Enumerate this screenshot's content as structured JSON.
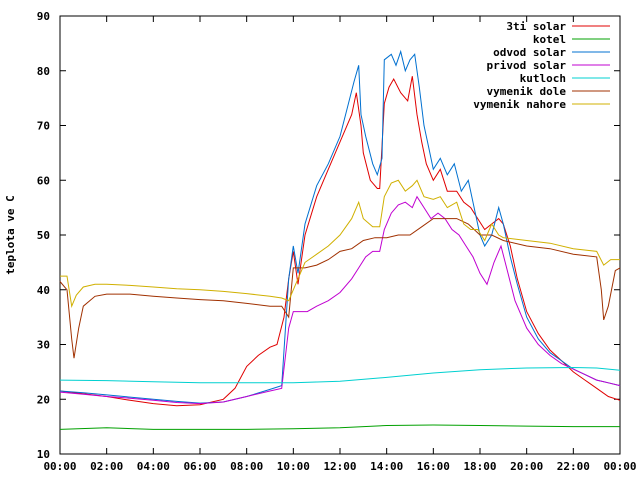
{
  "chart_data": {
    "type": "line",
    "title": "",
    "xlabel": "",
    "ylabel": "teplota ve C",
    "ylim": [
      10,
      90
    ],
    "yticks": [
      "10",
      "20",
      "30",
      "40",
      "50",
      "60",
      "70",
      "80",
      "90"
    ],
    "xlim": [
      0,
      24
    ],
    "xticks": [
      "00:00",
      "02:00",
      "04:00",
      "06:00",
      "08:00",
      "10:00",
      "12:00",
      "14:00",
      "16:00",
      "18:00",
      "20:00",
      "22:00",
      "00:00"
    ],
    "grid": false,
    "legend_position": "top-right",
    "series": [
      {
        "name": "3ti solar",
        "color": "#e00000",
        "points": [
          [
            0,
            21.5
          ],
          [
            1,
            21
          ],
          [
            2,
            20.5
          ],
          [
            3,
            19.8
          ],
          [
            4,
            19.2
          ],
          [
            5,
            18.8
          ],
          [
            6,
            19
          ],
          [
            7,
            20
          ],
          [
            7.5,
            22
          ],
          [
            8,
            26
          ],
          [
            8.5,
            28
          ],
          [
            9,
            29.5
          ],
          [
            9.3,
            30
          ],
          [
            9.6,
            35
          ],
          [
            9.8,
            42
          ],
          [
            10,
            47
          ],
          [
            10.2,
            41
          ],
          [
            10.5,
            50
          ],
          [
            11,
            57
          ],
          [
            11.5,
            62
          ],
          [
            12,
            67
          ],
          [
            12.5,
            72
          ],
          [
            12.7,
            76
          ],
          [
            12.9,
            70
          ],
          [
            13,
            65
          ],
          [
            13.3,
            60
          ],
          [
            13.6,
            58.5
          ],
          [
            13.7,
            58.5
          ],
          [
            13.9,
            74
          ],
          [
            14.1,
            77
          ],
          [
            14.3,
            78.5
          ],
          [
            14.6,
            76
          ],
          [
            14.9,
            74.5
          ],
          [
            15.1,
            79
          ],
          [
            15.3,
            72
          ],
          [
            15.5,
            67
          ],
          [
            15.7,
            63
          ],
          [
            16,
            60
          ],
          [
            16.3,
            62
          ],
          [
            16.6,
            58
          ],
          [
            17,
            58
          ],
          [
            17.3,
            56
          ],
          [
            17.6,
            55
          ],
          [
            17.9,
            53
          ],
          [
            18.2,
            51
          ],
          [
            18.5,
            52
          ],
          [
            18.8,
            53
          ],
          [
            19,
            52
          ],
          [
            19.3,
            48
          ],
          [
            19.6,
            42
          ],
          [
            20,
            36
          ],
          [
            20.5,
            32
          ],
          [
            21,
            29
          ],
          [
            21.5,
            27
          ],
          [
            22,
            25
          ],
          [
            22.5,
            23.5
          ],
          [
            23,
            22
          ],
          [
            23.5,
            20.5
          ],
          [
            24,
            19.8
          ]
        ]
      },
      {
        "name": "kotel",
        "color": "#00a000",
        "points": [
          [
            0,
            14.5
          ],
          [
            2,
            14.8
          ],
          [
            4,
            14.5
          ],
          [
            6,
            14.5
          ],
          [
            8,
            14.5
          ],
          [
            10,
            14.6
          ],
          [
            12,
            14.8
          ],
          [
            14,
            15.2
          ],
          [
            16,
            15.3
          ],
          [
            18,
            15.2
          ],
          [
            20,
            15.1
          ],
          [
            22,
            15
          ],
          [
            24,
            15
          ]
        ]
      },
      {
        "name": "odvod solar",
        "color": "#0070d0",
        "points": [
          [
            0,
            21.5
          ],
          [
            1,
            21.2
          ],
          [
            2,
            20.8
          ],
          [
            3,
            20.4
          ],
          [
            4,
            20
          ],
          [
            5,
            19.6
          ],
          [
            6,
            19.3
          ],
          [
            7,
            19.5
          ],
          [
            8,
            20.5
          ],
          [
            9,
            21.8
          ],
          [
            9.5,
            22.5
          ],
          [
            9.8,
            42
          ],
          [
            10,
            48
          ],
          [
            10.2,
            43
          ],
          [
            10.5,
            52
          ],
          [
            11,
            59
          ],
          [
            11.5,
            63
          ],
          [
            12,
            68
          ],
          [
            12.3,
            73
          ],
          [
            12.6,
            78
          ],
          [
            12.8,
            81
          ],
          [
            12.9,
            72
          ],
          [
            13.1,
            68
          ],
          [
            13.4,
            63
          ],
          [
            13.6,
            61
          ],
          [
            13.8,
            64
          ],
          [
            13.9,
            82
          ],
          [
            14.2,
            83
          ],
          [
            14.4,
            81
          ],
          [
            14.6,
            83.5
          ],
          [
            14.8,
            80
          ],
          [
            15,
            82
          ],
          [
            15.2,
            83
          ],
          [
            15.4,
            77
          ],
          [
            15.6,
            70
          ],
          [
            15.8,
            66
          ],
          [
            16,
            62
          ],
          [
            16.3,
            64
          ],
          [
            16.6,
            61
          ],
          [
            16.9,
            63
          ],
          [
            17.2,
            58
          ],
          [
            17.5,
            60
          ],
          [
            17.8,
            54
          ],
          [
            18,
            50
          ],
          [
            18.2,
            48
          ],
          [
            18.5,
            50
          ],
          [
            18.8,
            55
          ],
          [
            19,
            52
          ],
          [
            19.3,
            46
          ],
          [
            19.6,
            41
          ],
          [
            20,
            35
          ],
          [
            20.5,
            31
          ],
          [
            21,
            28.5
          ],
          [
            21.5,
            27
          ],
          [
            22,
            25.5
          ],
          [
            22.5,
            24.5
          ],
          [
            23,
            23.5
          ],
          [
            23.5,
            23
          ],
          [
            24,
            22.5
          ]
        ]
      },
      {
        "name": "privod solar",
        "color": "#c000d0",
        "points": [
          [
            0,
            21.3
          ],
          [
            1,
            20.9
          ],
          [
            2,
            20.5
          ],
          [
            3,
            20.2
          ],
          [
            4,
            19.8
          ],
          [
            5,
            19.4
          ],
          [
            6,
            19.2
          ],
          [
            7,
            19.5
          ],
          [
            8,
            20.5
          ],
          [
            9,
            21.5
          ],
          [
            9.5,
            22
          ],
          [
            9.8,
            33
          ],
          [
            10,
            36
          ],
          [
            10.3,
            36
          ],
          [
            10.6,
            36
          ],
          [
            11,
            37
          ],
          [
            11.5,
            38
          ],
          [
            12,
            39.5
          ],
          [
            12.5,
            42
          ],
          [
            12.8,
            44
          ],
          [
            13.1,
            46
          ],
          [
            13.4,
            47
          ],
          [
            13.7,
            47
          ],
          [
            13.9,
            51
          ],
          [
            14.2,
            54
          ],
          [
            14.5,
            55.5
          ],
          [
            14.8,
            56
          ],
          [
            15.1,
            55
          ],
          [
            15.3,
            57
          ],
          [
            15.6,
            55
          ],
          [
            15.9,
            53
          ],
          [
            16.2,
            54
          ],
          [
            16.5,
            53
          ],
          [
            16.8,
            51
          ],
          [
            17.1,
            50
          ],
          [
            17.4,
            48
          ],
          [
            17.7,
            46
          ],
          [
            18,
            43
          ],
          [
            18.3,
            41
          ],
          [
            18.6,
            45
          ],
          [
            18.9,
            48
          ],
          [
            19.2,
            43
          ],
          [
            19.5,
            38
          ],
          [
            20,
            33
          ],
          [
            20.5,
            30
          ],
          [
            21,
            28
          ],
          [
            21.5,
            26.5
          ],
          [
            22,
            25.5
          ],
          [
            22.5,
            24.5
          ],
          [
            23,
            23.5
          ],
          [
            23.5,
            23
          ],
          [
            24,
            22.5
          ]
        ]
      },
      {
        "name": "kutloch",
        "color": "#00d0d0",
        "points": [
          [
            0,
            23.5
          ],
          [
            2,
            23.4
          ],
          [
            4,
            23.2
          ],
          [
            6,
            23
          ],
          [
            8,
            23
          ],
          [
            9.5,
            23
          ],
          [
            10,
            23
          ],
          [
            12,
            23.3
          ],
          [
            14,
            24
          ],
          [
            16,
            24.8
          ],
          [
            18,
            25.4
          ],
          [
            20,
            25.7
          ],
          [
            22,
            25.8
          ],
          [
            23,
            25.7
          ],
          [
            24,
            25.3
          ]
        ]
      },
      {
        "name": "vymenik dole",
        "color": "#a03000",
        "points": [
          [
            0,
            41.5
          ],
          [
            0.3,
            40
          ],
          [
            0.5,
            31
          ],
          [
            0.6,
            27.5
          ],
          [
            0.8,
            33
          ],
          [
            1,
            37
          ],
          [
            1.5,
            38.8
          ],
          [
            2,
            39.2
          ],
          [
            3,
            39.2
          ],
          [
            4,
            38.8
          ],
          [
            5,
            38.5
          ],
          [
            6,
            38.2
          ],
          [
            7,
            38
          ],
          [
            8,
            37.5
          ],
          [
            9,
            37
          ],
          [
            9.5,
            37
          ],
          [
            9.8,
            35
          ],
          [
            10,
            44
          ],
          [
            10.5,
            44
          ],
          [
            11,
            44.5
          ],
          [
            11.5,
            45.5
          ],
          [
            12,
            47
          ],
          [
            12.5,
            47.5
          ],
          [
            13,
            49
          ],
          [
            13.5,
            49.5
          ],
          [
            14,
            49.5
          ],
          [
            14.5,
            50
          ],
          [
            15,
            50
          ],
          [
            15.5,
            51.5
          ],
          [
            16,
            53
          ],
          [
            16.5,
            53
          ],
          [
            17,
            53
          ],
          [
            17.5,
            52
          ],
          [
            18,
            50
          ],
          [
            18.5,
            50
          ],
          [
            19,
            49
          ],
          [
            20,
            48
          ],
          [
            21,
            47.5
          ],
          [
            22,
            46.5
          ],
          [
            23,
            46
          ],
          [
            23.2,
            40
          ],
          [
            23.3,
            34.5
          ],
          [
            23.5,
            37
          ],
          [
            23.8,
            43.5
          ],
          [
            24,
            44
          ]
        ]
      },
      {
        "name": "vymenik nahore",
        "color": "#d0b000",
        "points": [
          [
            0,
            42.5
          ],
          [
            0.3,
            42.5
          ],
          [
            0.5,
            37
          ],
          [
            0.7,
            39
          ],
          [
            1,
            40.5
          ],
          [
            1.5,
            41
          ],
          [
            2,
            41
          ],
          [
            3,
            40.8
          ],
          [
            4,
            40.5
          ],
          [
            5,
            40.2
          ],
          [
            6,
            40
          ],
          [
            7,
            39.7
          ],
          [
            8,
            39.3
          ],
          [
            9,
            38.8
          ],
          [
            9.5,
            38.5
          ],
          [
            9.8,
            38
          ],
          [
            10,
            40
          ],
          [
            10.5,
            45
          ],
          [
            11,
            46.5
          ],
          [
            11.5,
            48
          ],
          [
            12,
            50
          ],
          [
            12.5,
            53
          ],
          [
            12.8,
            56
          ],
          [
            13,
            53
          ],
          [
            13.4,
            51.5
          ],
          [
            13.7,
            51.5
          ],
          [
            13.9,
            57
          ],
          [
            14.2,
            59.5
          ],
          [
            14.5,
            60
          ],
          [
            14.8,
            58
          ],
          [
            15.1,
            59
          ],
          [
            15.3,
            60
          ],
          [
            15.6,
            57
          ],
          [
            16,
            56.5
          ],
          [
            16.3,
            57
          ],
          [
            16.6,
            55
          ],
          [
            17,
            56
          ],
          [
            17.3,
            52
          ],
          [
            17.6,
            51
          ],
          [
            17.9,
            51
          ],
          [
            18.2,
            49
          ],
          [
            18.5,
            52
          ],
          [
            18.8,
            50
          ],
          [
            19,
            49.5
          ],
          [
            20,
            49
          ],
          [
            21,
            48.5
          ],
          [
            22,
            47.5
          ],
          [
            23,
            47
          ],
          [
            23.3,
            44.5
          ],
          [
            23.6,
            45.5
          ],
          [
            24,
            45.5
          ]
        ]
      }
    ]
  }
}
